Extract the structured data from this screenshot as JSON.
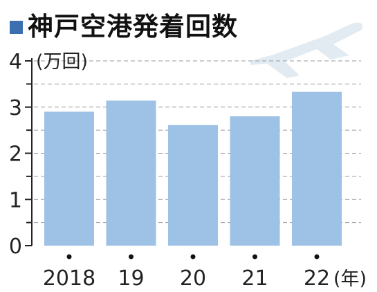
{
  "title": "神戸空港発着回数",
  "chart_data": {
    "type": "bar",
    "categories": [
      "2018",
      "19",
      "20",
      "21",
      "22"
    ],
    "values": [
      2.9,
      3.14,
      2.61,
      2.8,
      3.33
    ],
    "unit_label": "(万回)",
    "x_unit_label": "(年)",
    "ylim": [
      0,
      4
    ],
    "yticks": [
      0,
      1,
      2,
      3,
      4
    ],
    "grid": true,
    "bar_color": "#9ec2e6",
    "title_bullet_color": "#3c6fb0",
    "grid_color": "#9a9a9a",
    "axis_color": "#222222",
    "decor_icon": "airplane-icon",
    "decor_color": "#e2ebf2"
  }
}
